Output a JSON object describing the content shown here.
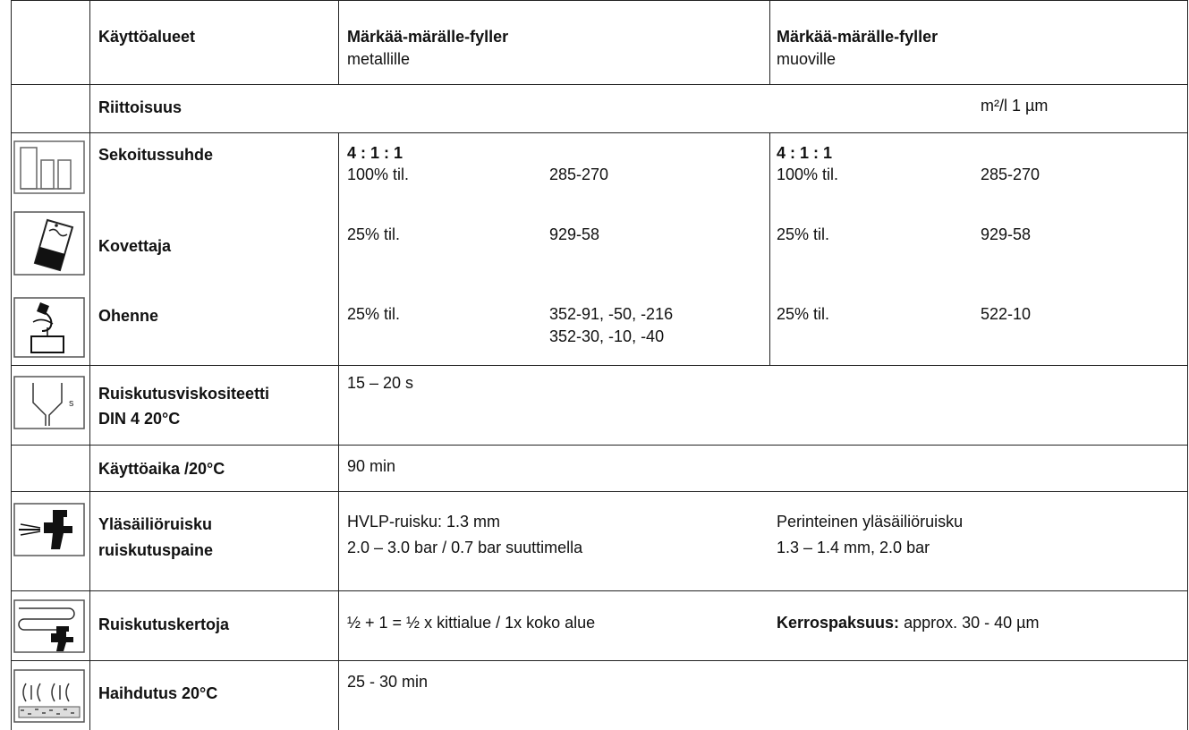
{
  "header": {
    "applications_label": "Käyttöalueet",
    "col_metal_title": "Märkää-märälle-fyller",
    "col_metal_sub": "metallille",
    "col_plastic_title": "Märkää-märälle-fyller",
    "col_plastic_sub": "muoville"
  },
  "coverage": {
    "label": "Riittoisuus",
    "unit": "m²/l 1 µm"
  },
  "mixing": {
    "label": "Sekoitussuhde",
    "icon": "mixing-ratio-icon",
    "metal": {
      "ratio": "4 : 1 : 1",
      "amount": "100% til.",
      "product": "285-270"
    },
    "plastic": {
      "ratio": "4 : 1 : 1",
      "amount": "100% til.",
      "product": "285-270"
    }
  },
  "hardener": {
    "label": "Kovettaja",
    "icon": "hardener-can-icon",
    "metal": {
      "amount": "25% til.",
      "product": "929-58"
    },
    "plastic": {
      "amount": "25% til.",
      "product": "929-58"
    }
  },
  "thinner": {
    "label": "Ohenne",
    "icon": "thinner-pour-icon",
    "metal": {
      "amount": "25% til.",
      "product_line1": "352-91, -50, -216",
      "product_line2": "352-30, -10, -40"
    },
    "plastic": {
      "amount": "25% til.",
      "product": "522-10"
    }
  },
  "viscosity": {
    "label_line1": "Ruiskutusviskositeetti",
    "label_line2": "DIN 4 20°C",
    "icon": "viscosity-cup-icon",
    "value": "15 – 20 s"
  },
  "potlife": {
    "label": "Käyttöaika /20°C",
    "value": "90 min"
  },
  "spraygun": {
    "label_line1": "Yläsäiliöruisku",
    "label_line2": "ruiskutuspaine",
    "icon": "spray-gun-icon",
    "metal_line1": "HVLP-ruisku: 1.3 mm",
    "metal_line2": "2.0 – 3.0 bar / 0.7 bar suuttimella",
    "plastic_line1": "Perinteinen yläsäiliöruisku",
    "plastic_line2": "1.3 – 1.4 mm, 2.0 bar"
  },
  "coats": {
    "label": "Ruiskutuskertoja",
    "icon": "spray-coats-icon",
    "value": "½ + 1 = ½ x kittialue / 1x koko alue",
    "thickness_label": "Kerrospaksuus:",
    "thickness_value": " approx. 30 - 40 µm"
  },
  "flashoff": {
    "label": "Haihdutus 20°C",
    "icon": "flash-off-icon",
    "value": "25 - 30 min"
  }
}
